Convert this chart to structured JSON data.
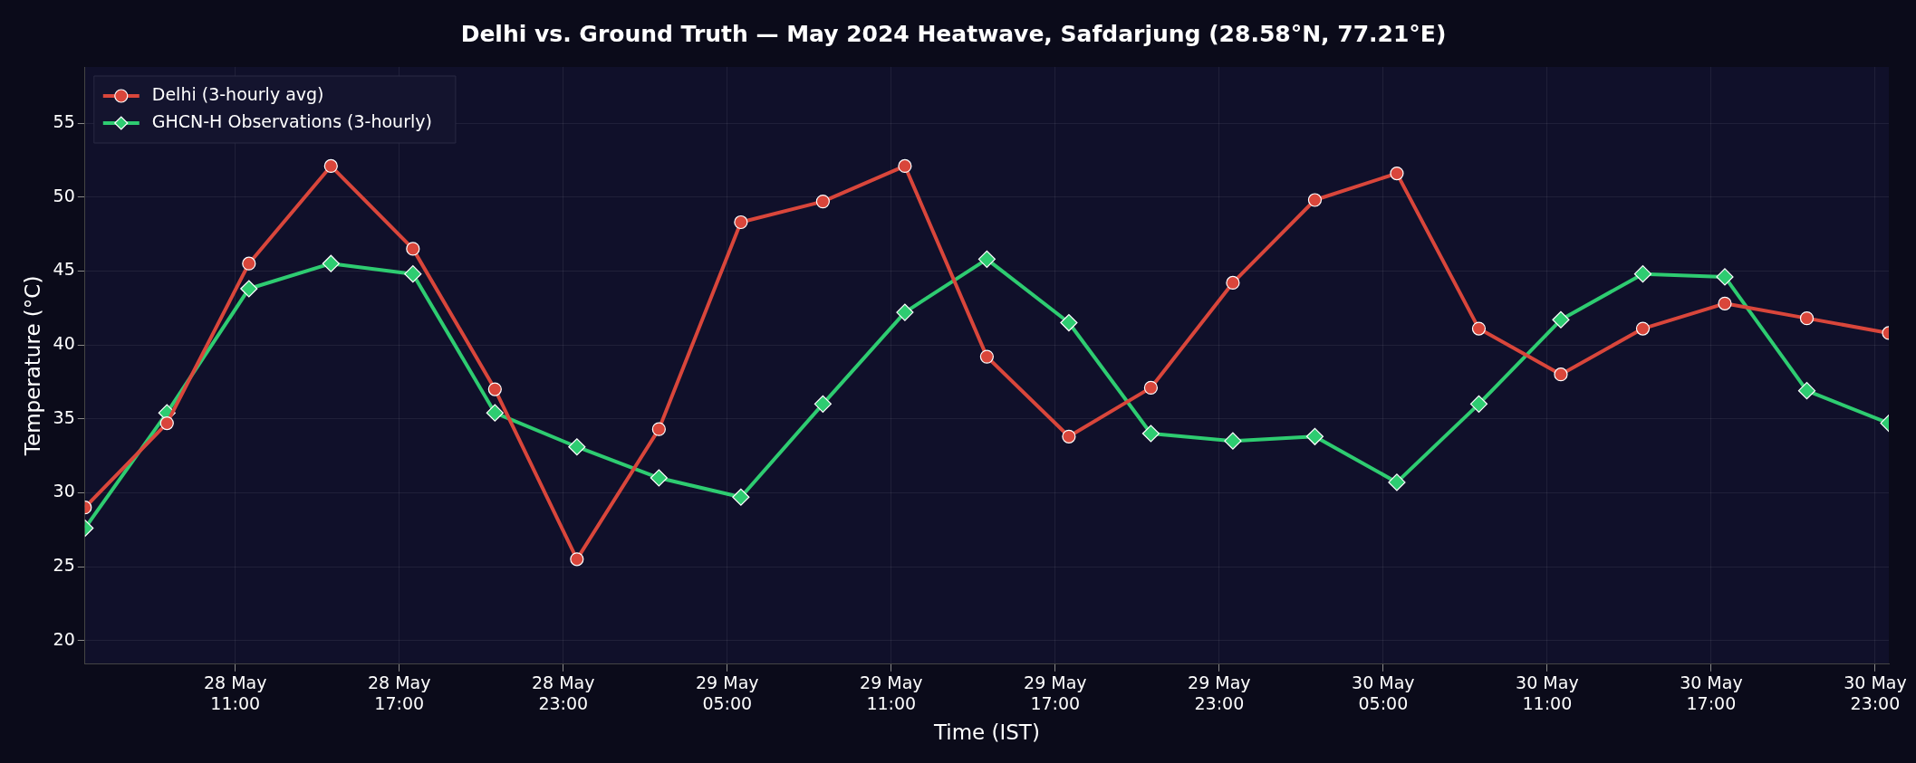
{
  "chart_data": {
    "type": "line",
    "title": "Delhi vs. Ground Truth — May 2024 Heatwave, Safdarjung (28.58°N, 77.21°E)",
    "xlabel": "Time (IST)",
    "ylabel": "Temperature (°C)",
    "x": [
      "2024-05-28T05:30",
      "2024-05-28T08:30",
      "2024-05-28T11:30",
      "2024-05-28T14:30",
      "2024-05-28T17:30",
      "2024-05-28T20:30",
      "2024-05-28T23:30",
      "2024-05-29T02:30",
      "2024-05-29T05:30",
      "2024-05-29T08:30",
      "2024-05-29T11:30",
      "2024-05-29T14:30",
      "2024-05-29T17:30",
      "2024-05-29T20:30",
      "2024-05-29T23:30",
      "2024-05-30T02:30",
      "2024-05-30T05:30",
      "2024-05-30T08:30",
      "2024-05-30T11:30",
      "2024-05-30T14:30",
      "2024-05-30T17:30",
      "2024-05-30T20:30",
      "2024-05-30T23:30"
    ],
    "series": [
      {
        "name": "Delhi (3-hourly avg)",
        "color": "#d9463b",
        "marker": "circle",
        "values": [
          29.0,
          34.7,
          45.5,
          52.1,
          46.5,
          37.0,
          25.5,
          34.3,
          48.3,
          49.7,
          52.1,
          39.2,
          33.8,
          37.1,
          44.2,
          49.8,
          51.6,
          41.1,
          38.0,
          41.1,
          42.8,
          41.8,
          40.8
        ]
      },
      {
        "name": "GHCN-H Observations (3-hourly)",
        "color": "#2ecc71",
        "marker": "diamond",
        "values": [
          27.6,
          35.4,
          43.8,
          45.5,
          44.8,
          35.4,
          33.1,
          31.0,
          29.7,
          36.0,
          42.2,
          45.8,
          41.5,
          34.0,
          33.5,
          33.8,
          30.7,
          36.0,
          41.7,
          44.8,
          44.6,
          36.9,
          34.7
        ]
      }
    ],
    "xlim": [
      "2024-05-28T05:30",
      "2024-05-30T23:30"
    ],
    "xticks": [
      {
        "value": "2024-05-28T11:00",
        "label": "28 May 11:00"
      },
      {
        "value": "2024-05-28T17:00",
        "label": "28 May 17:00"
      },
      {
        "value": "2024-05-28T23:00",
        "label": "28 May 23:00"
      },
      {
        "value": "2024-05-29T05:00",
        "label": "29 May 05:00"
      },
      {
        "value": "2024-05-29T11:00",
        "label": "29 May 11:00"
      },
      {
        "value": "2024-05-29T17:00",
        "label": "29 May 17:00"
      },
      {
        "value": "2024-05-29T23:00",
        "label": "29 May 23:00"
      },
      {
        "value": "2024-05-30T05:00",
        "label": "30 May 05:00"
      },
      {
        "value": "2024-05-30T11:00",
        "label": "30 May 11:00"
      },
      {
        "value": "2024-05-30T17:00",
        "label": "30 May 17:00"
      },
      {
        "value": "2024-05-30T23:00",
        "label": "30 May 23:00"
      }
    ],
    "ylim": [
      18.4,
      58.8
    ],
    "yticks": [
      20,
      25,
      30,
      35,
      40,
      45,
      50,
      55
    ],
    "grid": true,
    "legend": "top left",
    "line_style": "solid"
  }
}
